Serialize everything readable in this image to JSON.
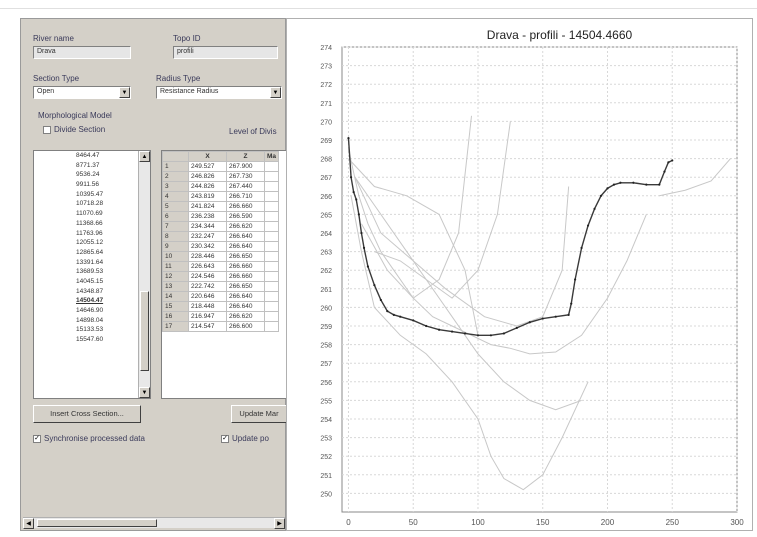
{
  "panel": {
    "river_name_label": "River name",
    "river_name_value": "Drava",
    "topo_id_label": "Topo ID",
    "topo_id_value": "profili",
    "section_type_label": "Section Type",
    "section_type_value": "Open",
    "radius_type_label": "Radius Type",
    "radius_type_value": "Resistance Radius",
    "morph_model_label": "Morphological Model",
    "divide_section_label": "Divide Section",
    "level_of_divide_label": "Level of Divis",
    "chainages": [
      "8464.47",
      "8771.37",
      "9536.24",
      "9911.56",
      "10395.47",
      "10718.28",
      "11070.69",
      "11368.66",
      "11763.96",
      "12055.12",
      "12865.64",
      "13391.64",
      "13689.53",
      "14045.15",
      "14348.87",
      "14504.47",
      "14646.90",
      "14898.04",
      "15133.53",
      "15547.60"
    ],
    "selected_chainage_index": 15,
    "table_headers": [
      "X",
      "Z",
      "Ma"
    ],
    "table_rows": [
      {
        "n": "1",
        "x": "249.527",
        "z": "267.900"
      },
      {
        "n": "2",
        "x": "246.826",
        "z": "267.730"
      },
      {
        "n": "3",
        "x": "244.826",
        "z": "267.440"
      },
      {
        "n": "4",
        "x": "243.819",
        "z": "266.710"
      },
      {
        "n": "5",
        "x": "241.824",
        "z": "266.660"
      },
      {
        "n": "6",
        "x": "236.238",
        "z": "266.590"
      },
      {
        "n": "7",
        "x": "234.344",
        "z": "266.620"
      },
      {
        "n": "8",
        "x": "232.247",
        "z": "266.640"
      },
      {
        "n": "9",
        "x": "230.342",
        "z": "266.640"
      },
      {
        "n": "10",
        "x": "228.446",
        "z": "266.650"
      },
      {
        "n": "11",
        "x": "226.643",
        "z": "266.660"
      },
      {
        "n": "12",
        "x": "224.546",
        "z": "266.660"
      },
      {
        "n": "13",
        "x": "222.742",
        "z": "266.650"
      },
      {
        "n": "14",
        "x": "220.646",
        "z": "266.640"
      },
      {
        "n": "15",
        "x": "218.448",
        "z": "266.640"
      },
      {
        "n": "16",
        "x": "216.947",
        "z": "266.620"
      },
      {
        "n": "17",
        "x": "214.547",
        "z": "266.600"
      }
    ],
    "insert_button_label": "Insert Cross Section...",
    "update_button_label": "Update Mar",
    "sync_checkbox_label": "Synchronise processed data",
    "update_checkbox_label": "Update po"
  },
  "chart_data": {
    "type": "line",
    "title": "Drava - profili - 14504.4660",
    "xlim": [
      -5,
      300
    ],
    "ylim": [
      249,
      274
    ],
    "x_ticks": [
      0,
      50,
      100,
      150,
      200,
      250,
      300
    ],
    "y_ticks": [
      250,
      251,
      252,
      253,
      254,
      255,
      256,
      257,
      258,
      259,
      260,
      261,
      262,
      263,
      264,
      265,
      266,
      267,
      268,
      269,
      270,
      271,
      272,
      273,
      274
    ],
    "grid": true,
    "series": [
      {
        "role": "active",
        "color": "#3a3a3a",
        "x": [
          0,
          2,
          4,
          6,
          8,
          10,
          12,
          15,
          20,
          25,
          30,
          35,
          40,
          50,
          60,
          70,
          80,
          90,
          100,
          110,
          120,
          130,
          140,
          150,
          160,
          170,
          172,
          175,
          180,
          185,
          190,
          195,
          200,
          205,
          210,
          220,
          230,
          240,
          244,
          247,
          250
        ],
        "y": [
          269.1,
          267.0,
          266.2,
          265.8,
          265.0,
          264.0,
          263.2,
          262.2,
          261.2,
          260.4,
          259.8,
          259.6,
          259.5,
          259.3,
          259.0,
          258.8,
          258.7,
          258.6,
          258.5,
          258.5,
          258.6,
          258.9,
          259.2,
          259.4,
          259.5,
          259.6,
          260.2,
          261.5,
          263.2,
          264.4,
          265.3,
          266.0,
          266.4,
          266.6,
          266.7,
          266.7,
          266.6,
          266.6,
          267.3,
          267.8,
          267.9
        ]
      },
      {
        "role": "background",
        "color": "#c8c8c8",
        "x": [
          0,
          8,
          15,
          25,
          35,
          50,
          65,
          80,
          95,
          110,
          125,
          140,
          160,
          180,
          200,
          215,
          230
        ],
        "y": [
          268.5,
          266.0,
          264.5,
          263.0,
          262.0,
          260.5,
          259.5,
          259.0,
          258.5,
          258.0,
          257.8,
          257.5,
          257.6,
          258.5,
          260.5,
          262.5,
          265.0
        ]
      },
      {
        "role": "background",
        "color": "#c8c8c8",
        "x": [
          5,
          20,
          40,
          60,
          80,
          100,
          120,
          140,
          160,
          180
        ],
        "y": [
          267.0,
          265.5,
          263.5,
          261.5,
          259.5,
          257.5,
          256.0,
          255.0,
          254.5,
          255.0
        ]
      },
      {
        "role": "background",
        "color": "#c8c8c8",
        "x": [
          2,
          10,
          20,
          40,
          60,
          80,
          100,
          110,
          120,
          135,
          150,
          165,
          185
        ],
        "y": [
          266.0,
          263.0,
          260.0,
          258.5,
          257.5,
          256.0,
          254.0,
          252.0,
          250.8,
          250.2,
          251.0,
          253.0,
          256.0
        ]
      },
      {
        "role": "background",
        "color": "#c8c8c8",
        "x": [
          10,
          30,
          50,
          70,
          85,
          95
        ],
        "y": [
          264.5,
          262.0,
          260.5,
          261.5,
          264.0,
          270.3
        ]
      },
      {
        "role": "background",
        "color": "#c8c8c8",
        "x": [
          20,
          40,
          60,
          80,
          100,
          115,
          125
        ],
        "y": [
          263.0,
          262.5,
          261.5,
          260.5,
          262.0,
          265.0,
          270.0
        ]
      },
      {
        "role": "background",
        "color": "#c8c8c8",
        "x": [
          0,
          20,
          45,
          70,
          90,
          100
        ],
        "y": [
          268.0,
          266.5,
          266.0,
          265.0,
          262.0,
          258.5
        ]
      },
      {
        "role": "background",
        "color": "#c8c8c8",
        "x": [
          5,
          25,
          50,
          75,
          105,
          130,
          150,
          165,
          170
        ],
        "y": [
          267.0,
          264.0,
          262.5,
          261.0,
          259.5,
          259.0,
          259.5,
          262.0,
          266.5
        ]
      },
      {
        "role": "background",
        "color": "#c8c8c8",
        "x": [
          240,
          260,
          280,
          295
        ],
        "y": [
          266.0,
          266.3,
          266.8,
          268.0
        ]
      }
    ]
  }
}
